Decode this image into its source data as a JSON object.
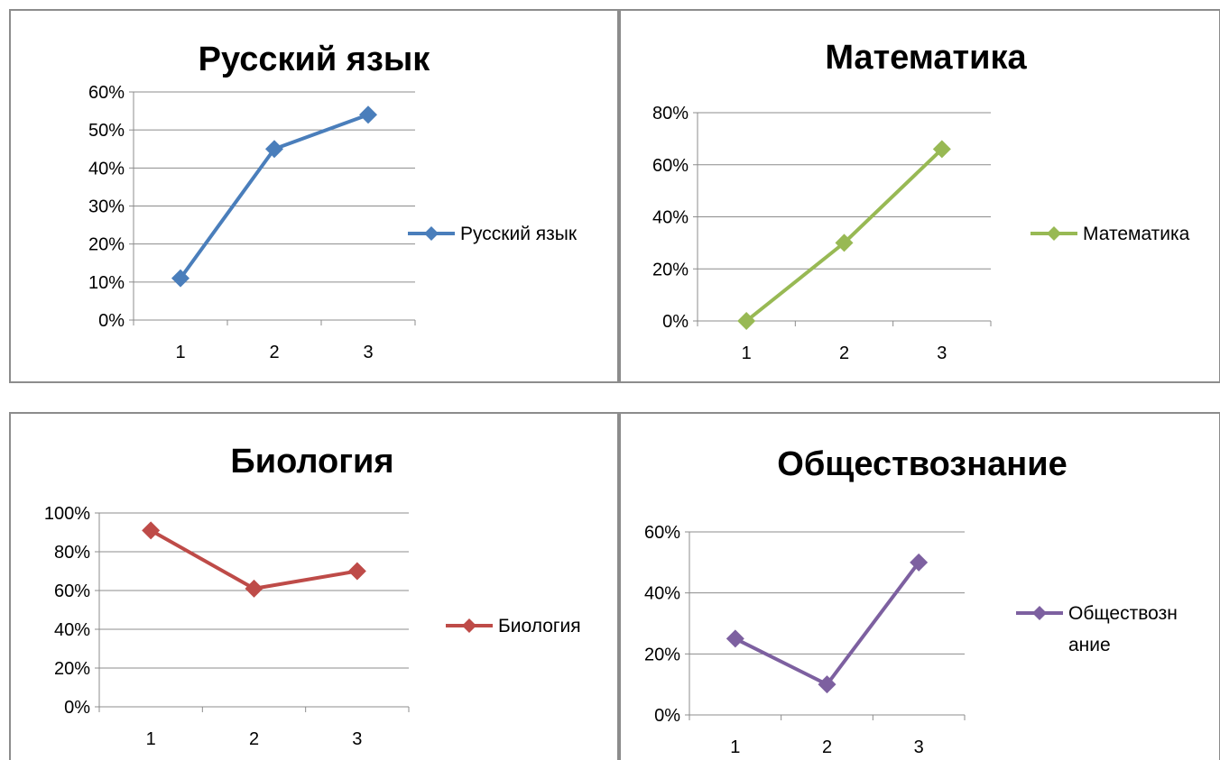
{
  "chart_data": [
    {
      "type": "line",
      "title": "Русский язык",
      "categories": [
        "1",
        "2",
        "3"
      ],
      "series": [
        {
          "name": "Русский язык",
          "values": [
            0.11,
            0.45,
            0.54
          ],
          "color": "#4a7ebb"
        }
      ],
      "ylim": [
        0,
        0.6
      ],
      "yticks": [
        0,
        0.1,
        0.2,
        0.3,
        0.4,
        0.5,
        0.6
      ],
      "ytick_labels": [
        "0%",
        "10%",
        "20%",
        "30%",
        "40%",
        "50%",
        "60%"
      ],
      "grid": true,
      "legend": "right",
      "legend_lines": [
        "Русский язык"
      ]
    },
    {
      "type": "line",
      "title": "Математика",
      "categories": [
        "1",
        "2",
        "3"
      ],
      "series": [
        {
          "name": "Математика",
          "values": [
            0.0,
            0.3,
            0.66
          ],
          "color": "#98b954"
        }
      ],
      "ylim": [
        0,
        0.8
      ],
      "yticks": [
        0,
        0.2,
        0.4,
        0.6,
        0.8
      ],
      "ytick_labels": [
        "0%",
        "20%",
        "40%",
        "60%",
        "80%"
      ],
      "grid": true,
      "legend": "right",
      "legend_lines": [
        "Математика"
      ]
    },
    {
      "type": "line",
      "title": "Биология",
      "categories": [
        "1",
        "2",
        "3"
      ],
      "series": [
        {
          "name": "Биология",
          "values": [
            0.91,
            0.61,
            0.7
          ],
          "color": "#be4b48"
        }
      ],
      "ylim": [
        0,
        1.0
      ],
      "yticks": [
        0,
        0.2,
        0.4,
        0.6,
        0.8,
        1.0
      ],
      "ytick_labels": [
        "0%",
        "20%",
        "40%",
        "60%",
        "80%",
        "100%"
      ],
      "grid": true,
      "legend": "right",
      "legend_lines": [
        "Биология"
      ]
    },
    {
      "type": "line",
      "title": "Обществознание",
      "categories": [
        "1",
        "2",
        "3"
      ],
      "series": [
        {
          "name": "Обществознание",
          "values": [
            0.25,
            0.1,
            0.5
          ],
          "color": "#7d60a0"
        }
      ],
      "ylim": [
        0,
        0.6
      ],
      "yticks": [
        0,
        0.2,
        0.4,
        0.6
      ],
      "ytick_labels": [
        "0%",
        "20%",
        "40%",
        "60%"
      ],
      "grid": true,
      "legend": "right",
      "legend_lines": [
        "Обществозн",
        "ание"
      ]
    }
  ]
}
